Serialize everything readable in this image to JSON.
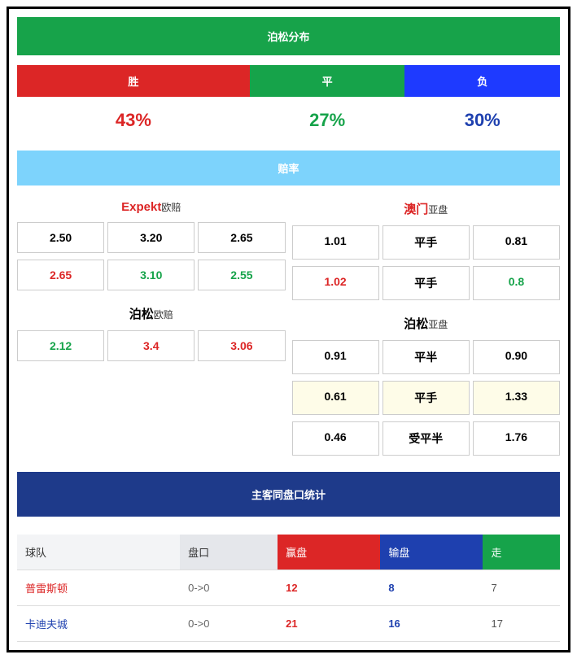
{
  "poisson": {
    "title": "泊松分布",
    "header_bg": "#17a34a",
    "labels": {
      "win": "胜",
      "draw": "平",
      "lose": "负"
    },
    "label_bg": {
      "win": "#dc2626",
      "draw": "#16a34a",
      "lose": "#1e3aff"
    },
    "pct": {
      "win": "43%",
      "draw": "27%",
      "lose": "30%"
    },
    "pct_color": {
      "win": "#dc2626",
      "draw": "#16a34a",
      "lose": "#1e40af"
    }
  },
  "odds": {
    "title": "赔率",
    "header_bg": "#7dd3fc",
    "left": {
      "sections": [
        {
          "name_main": "Expekt",
          "name_main_color": "#dc2626",
          "name_sub": "欧赔",
          "rows": [
            {
              "cells": [
                {
                  "v": "2.50",
                  "c": "#000"
                },
                {
                  "v": "3.20",
                  "c": "#000"
                },
                {
                  "v": "2.65",
                  "c": "#000"
                }
              ]
            },
            {
              "cells": [
                {
                  "v": "2.65",
                  "c": "#dc2626"
                },
                {
                  "v": "3.10",
                  "c": "#16a34a"
                },
                {
                  "v": "2.55",
                  "c": "#16a34a"
                }
              ]
            }
          ]
        },
        {
          "name_main": "泊松",
          "name_main_color": "#000",
          "name_sub": "欧赔",
          "rows": [
            {
              "cells": [
                {
                  "v": "2.12",
                  "c": "#16a34a"
                },
                {
                  "v": "3.4",
                  "c": "#dc2626"
                },
                {
                  "v": "3.06",
                  "c": "#dc2626"
                }
              ]
            }
          ]
        }
      ]
    },
    "right": {
      "sections": [
        {
          "name_main": "澳门",
          "name_main_color": "#dc2626",
          "name_sub": "亚盘",
          "rows": [
            {
              "cells": [
                {
                  "v": "1.01",
                  "c": "#000"
                },
                {
                  "v": "平手",
                  "c": "#000"
                },
                {
                  "v": "0.81",
                  "c": "#000"
                }
              ]
            },
            {
              "cells": [
                {
                  "v": "1.02",
                  "c": "#dc2626"
                },
                {
                  "v": "平手",
                  "c": "#000"
                },
                {
                  "v": "0.8",
                  "c": "#16a34a"
                }
              ]
            }
          ]
        },
        {
          "name_main": "泊松",
          "name_main_color": "#000",
          "name_sub": "亚盘",
          "rows": [
            {
              "cells": [
                {
                  "v": "0.91",
                  "c": "#000"
                },
                {
                  "v": "平半",
                  "c": "#000"
                },
                {
                  "v": "0.90",
                  "c": "#000"
                }
              ]
            },
            {
              "highlight": true,
              "cells": [
                {
                  "v": "0.61",
                  "c": "#000"
                },
                {
                  "v": "平手",
                  "c": "#000"
                },
                {
                  "v": "1.33",
                  "c": "#000"
                }
              ]
            },
            {
              "cells": [
                {
                  "v": "0.46",
                  "c": "#000"
                },
                {
                  "v": "受平半",
                  "c": "#000"
                },
                {
                  "v": "1.76",
                  "c": "#000"
                }
              ]
            }
          ]
        }
      ]
    }
  },
  "stats": {
    "title": "主客同盘口统计",
    "header_bg": "#1e3a8a",
    "columns": {
      "team": "球队",
      "handicap": "盘口",
      "win": "赢盘",
      "lose": "输盘",
      "draw": "走"
    },
    "rows": [
      {
        "team": "普雷斯顿",
        "team_color": "#dc2626",
        "handicap": "0->0",
        "win": "12",
        "lose": "8",
        "draw": "7"
      },
      {
        "team": "卡迪夫城",
        "team_color": "#1e40af",
        "handicap": "0->0",
        "win": "21",
        "lose": "16",
        "draw": "17"
      }
    ]
  }
}
